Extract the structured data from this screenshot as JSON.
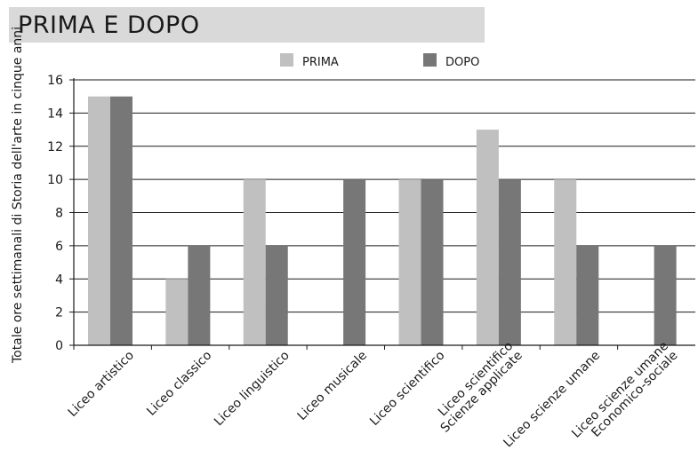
{
  "title": "PRIMA E DOPO",
  "colors": {
    "prima": "#c0c0c0",
    "dopo": "#777777",
    "title_bg": "#d9d9d9"
  },
  "chart_data": {
    "type": "bar",
    "categories": [
      [
        "Liceo artistico"
      ],
      [
        "Liceo classico"
      ],
      [
        "Liceo linguistico"
      ],
      [
        "Liceo musicale"
      ],
      [
        "Liceo scientifico"
      ],
      [
        "Liceo scientifico",
        "Scienze applicate"
      ],
      [
        "Liceo scienze umane"
      ],
      [
        "Liceo scienze umane",
        "Economico-sociale"
      ]
    ],
    "series": [
      {
        "name": "PRIMA",
        "color": "#c0c0c0",
        "values": [
          15,
          4,
          10,
          0,
          10,
          13,
          10,
          0
        ]
      },
      {
        "name": "DOPO",
        "color": "#777777",
        "values": [
          15,
          6,
          6,
          10,
          10,
          10,
          6,
          6
        ]
      }
    ],
    "ylabel": "Totale ore settimanali di Storia dell'arte in cinque anni",
    "xlabel": "",
    "ylim": [
      0,
      16
    ],
    "yticks": [
      0,
      2,
      4,
      6,
      8,
      10,
      12,
      14,
      16
    ],
    "grid": true,
    "legend": "top-center"
  }
}
